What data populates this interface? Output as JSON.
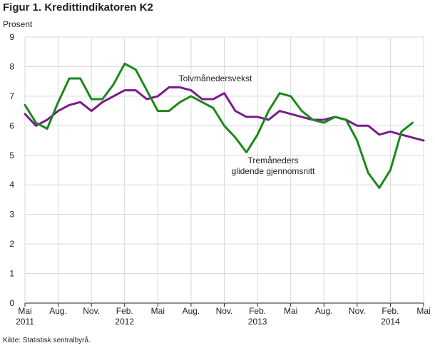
{
  "chart_data": {
    "type": "line",
    "title": "Figur 1. Kredittindikatoren K2",
    "ylabel": "Prosent",
    "source": "Kilde: Statistisk sentralbyrå.",
    "ylim": [
      0,
      9
    ],
    "yticks": [
      "0",
      "1",
      "2",
      "3",
      "4",
      "5",
      "6",
      "7",
      "8",
      "9"
    ],
    "grid": true,
    "x_start": "2011-05",
    "x_end": "2014-05",
    "xtick_labels": [
      {
        "month": 0,
        "label": "Mai",
        "year": "2011"
      },
      {
        "month": 3,
        "label": "Aug.",
        "year": ""
      },
      {
        "month": 6,
        "label": "Nov.",
        "year": ""
      },
      {
        "month": 9,
        "label": "Feb.",
        "year": "2012"
      },
      {
        "month": 12,
        "label": "Mai",
        "year": ""
      },
      {
        "month": 15,
        "label": "Aug.",
        "year": ""
      },
      {
        "month": 18,
        "label": "Nov.",
        "year": ""
      },
      {
        "month": 21,
        "label": "Feb.",
        "year": "2013"
      },
      {
        "month": 24,
        "label": "Mai",
        "year": ""
      },
      {
        "month": 27,
        "label": "Aug.",
        "year": ""
      },
      {
        "month": 30,
        "label": "Nov.",
        "year": ""
      },
      {
        "month": 33,
        "label": "Feb.",
        "year": "2014"
      },
      {
        "month": 36,
        "label": "Mai",
        "year": ""
      }
    ],
    "series": [
      {
        "name": "Tolvmånedersvekst",
        "color": "#7a1c8c",
        "values": [
          6.4,
          6.0,
          6.2,
          6.5,
          6.7,
          6.8,
          6.5,
          6.8,
          7.0,
          7.2,
          7.2,
          6.9,
          7.0,
          7.3,
          7.3,
          7.2,
          6.9,
          6.9,
          7.1,
          6.5,
          6.3,
          6.3,
          6.2,
          6.5,
          6.4,
          6.3,
          6.2,
          6.2,
          6.3,
          6.2,
          6.0,
          6.0,
          5.7,
          5.8,
          5.7,
          5.6,
          5.5
        ]
      },
      {
        "name": "Tremåneders glidende gjennomsnitt",
        "color": "#1a8a1a",
        "values": [
          6.7,
          6.1,
          5.9,
          6.8,
          7.6,
          7.6,
          6.9,
          6.9,
          7.4,
          8.1,
          7.9,
          7.2,
          6.5,
          6.5,
          6.8,
          7.0,
          6.8,
          6.6,
          6.0,
          5.6,
          5.1,
          5.7,
          6.5,
          7.1,
          7.0,
          6.5,
          6.2,
          6.1,
          6.3,
          6.2,
          5.5,
          4.4,
          3.9,
          4.5,
          5.8,
          6.1
        ]
      }
    ],
    "annotations": [
      {
        "text": "Tolvmånedersvekst",
        "series": 0
      },
      {
        "text": "Tremåneders",
        "series": 1
      },
      {
        "text": "glidende gjennomsnitt",
        "series": 1
      }
    ]
  }
}
